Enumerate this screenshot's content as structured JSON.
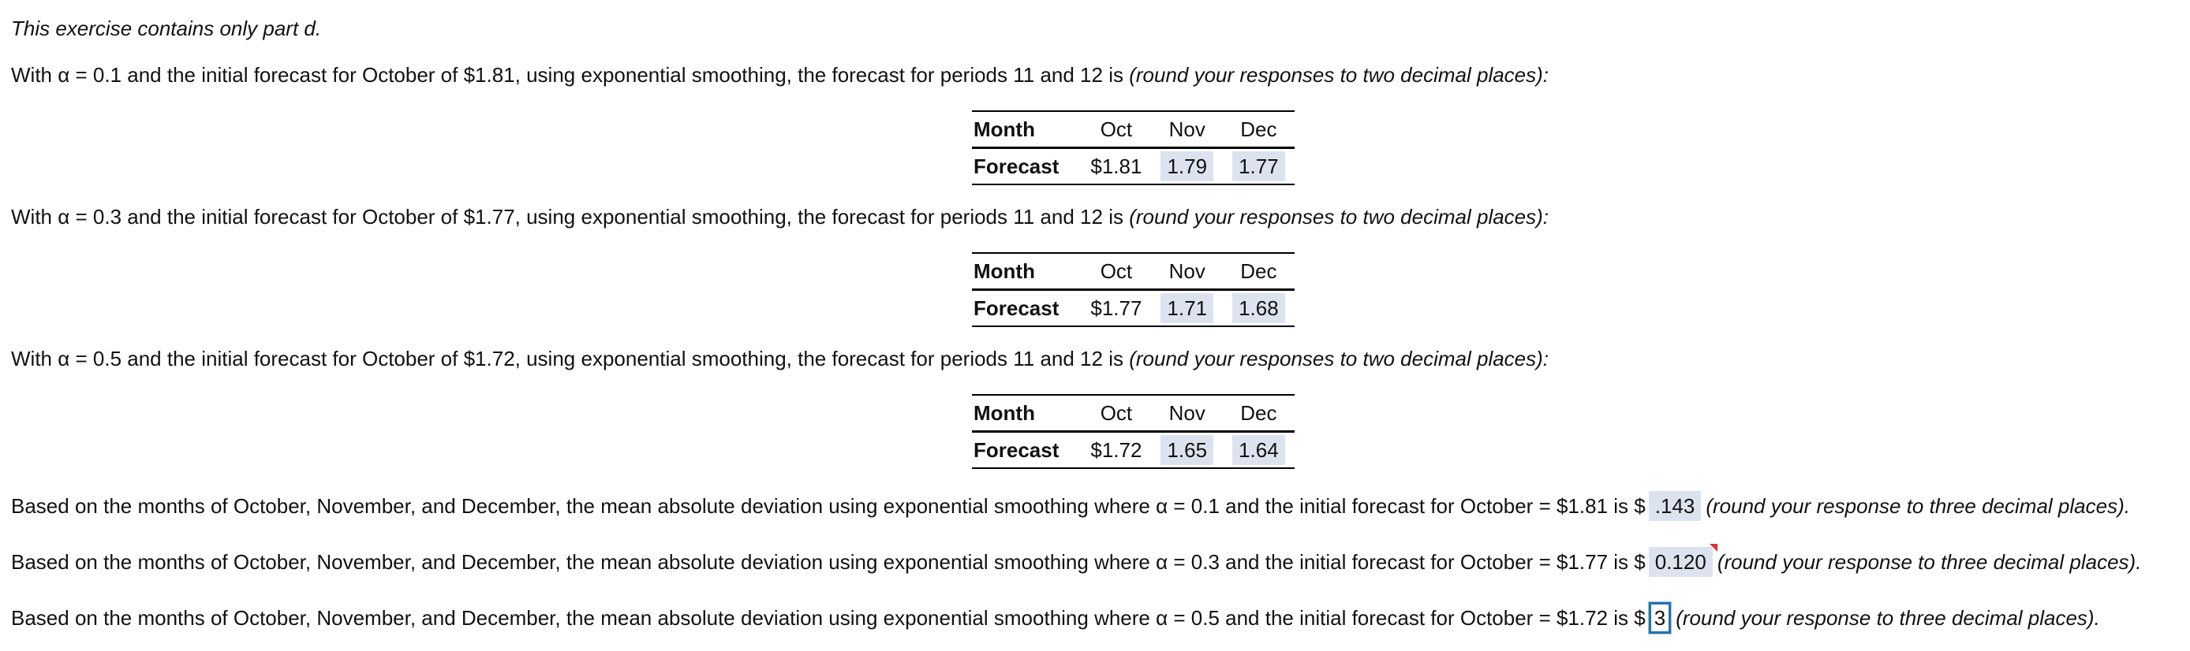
{
  "intro": "This exercise contains only part d.",
  "sections": [
    {
      "text": "With α = 0.1 and the initial forecast for October of $1.81, using exponential smoothing, the forecast for periods 11 and 12 is",
      "note": "(round your responses to two decimal places):",
      "table": {
        "header": [
          "Month",
          "Oct",
          "Nov",
          "Dec"
        ],
        "row": [
          "Forecast",
          "$1.81",
          "1.79",
          "1.77"
        ]
      }
    },
    {
      "text": "With α = 0.3 and the initial forecast for October of $1.77, using exponential smoothing, the forecast for periods 11 and 12 is",
      "note": "(round your responses to two decimal places):",
      "table": {
        "header": [
          "Month",
          "Oct",
          "Nov",
          "Dec"
        ],
        "row": [
          "Forecast",
          "$1.77",
          "1.71",
          "1.68"
        ]
      }
    },
    {
      "text": "With α = 0.5 and the initial forecast for October of $1.72, using exponential smoothing, the forecast for periods 11 and 12 is",
      "note": "(round your responses to two decimal places):",
      "table": {
        "header": [
          "Month",
          "Oct",
          "Nov",
          "Dec"
        ],
        "row": [
          "Forecast",
          "$1.72",
          "1.65",
          "1.64"
        ]
      }
    }
  ],
  "mad": [
    {
      "text": "Based on the months of October, November, and December, the mean absolute deviation using exponential smoothing where α = 0.1 and the initial forecast for October = $1.81 is $",
      "answer": ".143",
      "note": "(round your response to three decimal places)."
    },
    {
      "text": "Based on the months of October, November, and December, the mean absolute deviation using exponential smoothing where α = 0.3 and the initial forecast for October = $1.77 is $",
      "answer": "0.120",
      "note": "(round your response to three decimal places)."
    },
    {
      "text": "Based on the months of October, November, and December, the mean absolute deviation using exponential smoothing where α = 0.5 and the initial forecast for October = $1.72 is $",
      "answer": "3",
      "note": "(round your response to three decimal places)."
    }
  ]
}
